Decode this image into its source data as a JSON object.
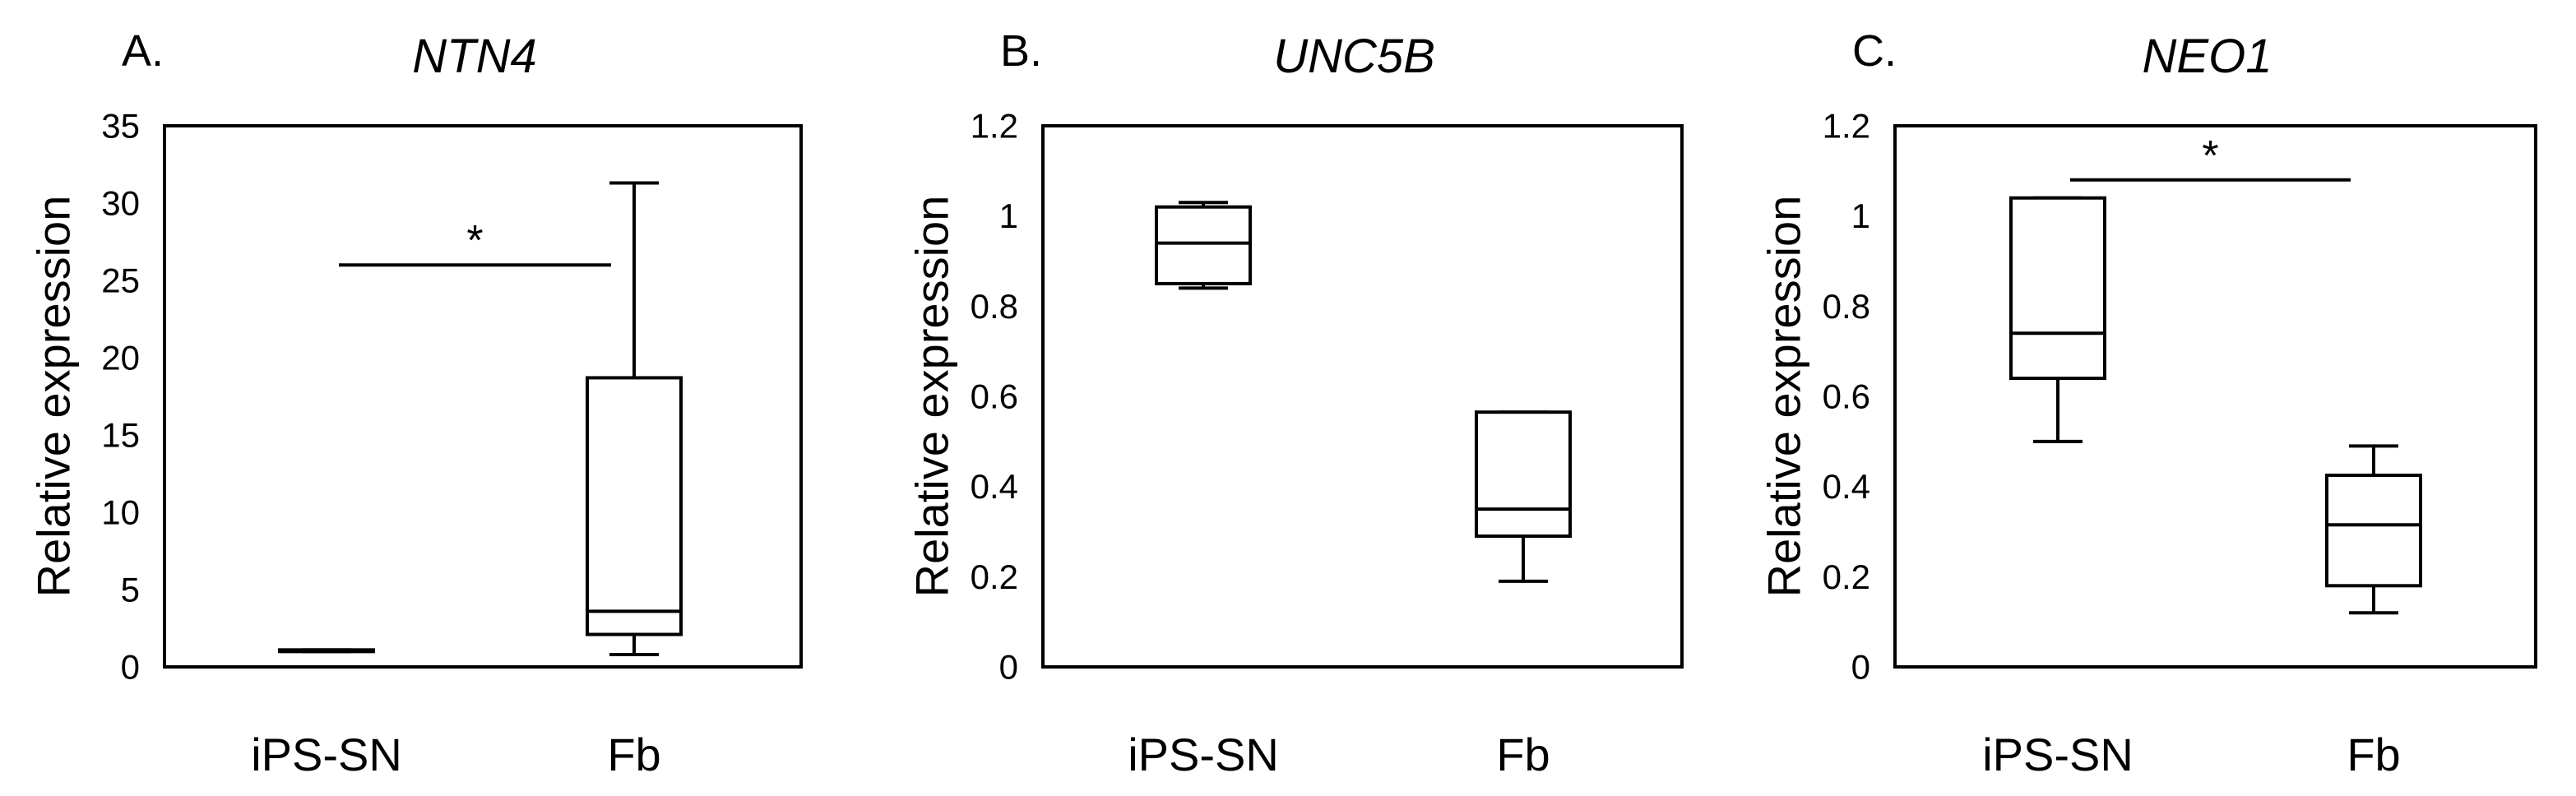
{
  "chart_data": [
    {
      "type": "box",
      "panel_label": "A.",
      "title": "NTN4",
      "ylabel": "Relative expression",
      "ylim": [
        0,
        35
      ],
      "yticks": [
        0,
        5,
        10,
        15,
        20,
        25,
        30,
        35
      ],
      "categories": [
        "iPS-SN",
        "Fb"
      ],
      "boxes": [
        {
          "category": "iPS-SN",
          "min": 1.0,
          "q1": 1.0,
          "median": 1.0,
          "q3": 1.1,
          "max": 1.1
        },
        {
          "category": "Fb",
          "min": 0.8,
          "q1": 2.1,
          "median": 3.6,
          "q3": 18.7,
          "max": 31.3
        }
      ],
      "significance": {
        "label": "*",
        "y": 26,
        "from": "iPS-SN",
        "to": "Fb"
      }
    },
    {
      "type": "box",
      "panel_label": "B.",
      "title": "UNC5B",
      "ylabel": "Relative expression",
      "ylim": [
        0,
        1.2
      ],
      "yticks": [
        0,
        0.2,
        0.4,
        0.6,
        0.8,
        1,
        1.2
      ],
      "categories": [
        "iPS-SN",
        "Fb"
      ],
      "boxes": [
        {
          "category": "iPS-SN",
          "min": 0.84,
          "q1": 0.85,
          "median": 0.94,
          "q3": 1.02,
          "max": 1.03
        },
        {
          "category": "Fb",
          "min": 0.19,
          "q1": 0.29,
          "median": 0.35,
          "q3": 0.565,
          "max": 0.565
        }
      ],
      "significance": null
    },
    {
      "type": "box",
      "panel_label": "C.",
      "title": "NEO1",
      "ylabel": "Relative expression",
      "ylim": [
        0,
        1.2
      ],
      "yticks": [
        0,
        0.2,
        0.4,
        0.6,
        0.8,
        1,
        1.2
      ],
      "categories": [
        "iPS-SN",
        "Fb"
      ],
      "boxes": [
        {
          "category": "iPS-SN",
          "min": 0.5,
          "q1": 0.64,
          "median": 0.74,
          "q3": 1.04,
          "max": 1.04
        },
        {
          "category": "Fb",
          "min": 0.12,
          "q1": 0.18,
          "median": 0.315,
          "q3": 0.425,
          "max": 0.49
        }
      ],
      "significance": {
        "label": "*",
        "y": 1.08,
        "from": "iPS-SN",
        "to": "Fb"
      }
    }
  ]
}
